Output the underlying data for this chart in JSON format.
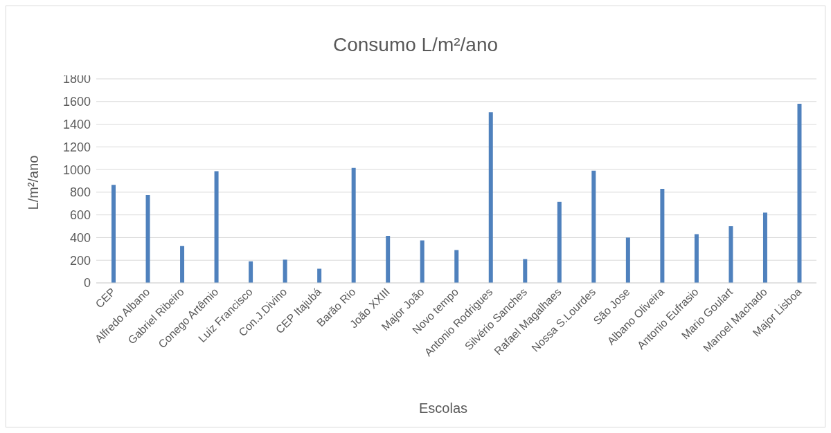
{
  "chart_data": {
    "type": "bar",
    "title": "Consumo L/m²/ano",
    "xlabel": "Escolas",
    "ylabel": "L/m²/ano",
    "categories": [
      "CEP",
      "Alfredo Albano",
      "Gabriel Ribeiro",
      "Conego Artêmio",
      "Luiz Francisco",
      "Con.J.Divino",
      "CEP Itajubá",
      "Barão Rio",
      "João XXIII",
      "Major João",
      "Novo tempo",
      "Antonio Rodrigues",
      "Silvério Sanches",
      "Rafael Magalhaes",
      "Nossa S.Lourdes",
      "São Jose",
      "Albano Oliveira",
      "Antonio Eufrasio",
      "Mario Goulart",
      "Manoel Machado",
      "Major Lisboa"
    ],
    "values": [
      865,
      775,
      325,
      985,
      190,
      205,
      125,
      1015,
      415,
      375,
      290,
      1505,
      210,
      715,
      990,
      400,
      830,
      430,
      500,
      620,
      1580
    ],
    "color": "#4f81bd",
    "ylim": [
      0,
      1800
    ],
    "yticks": [
      0,
      200,
      400,
      600,
      800,
      1000,
      1200,
      1400,
      1600,
      1800
    ],
    "grid": "y",
    "legend": false
  }
}
